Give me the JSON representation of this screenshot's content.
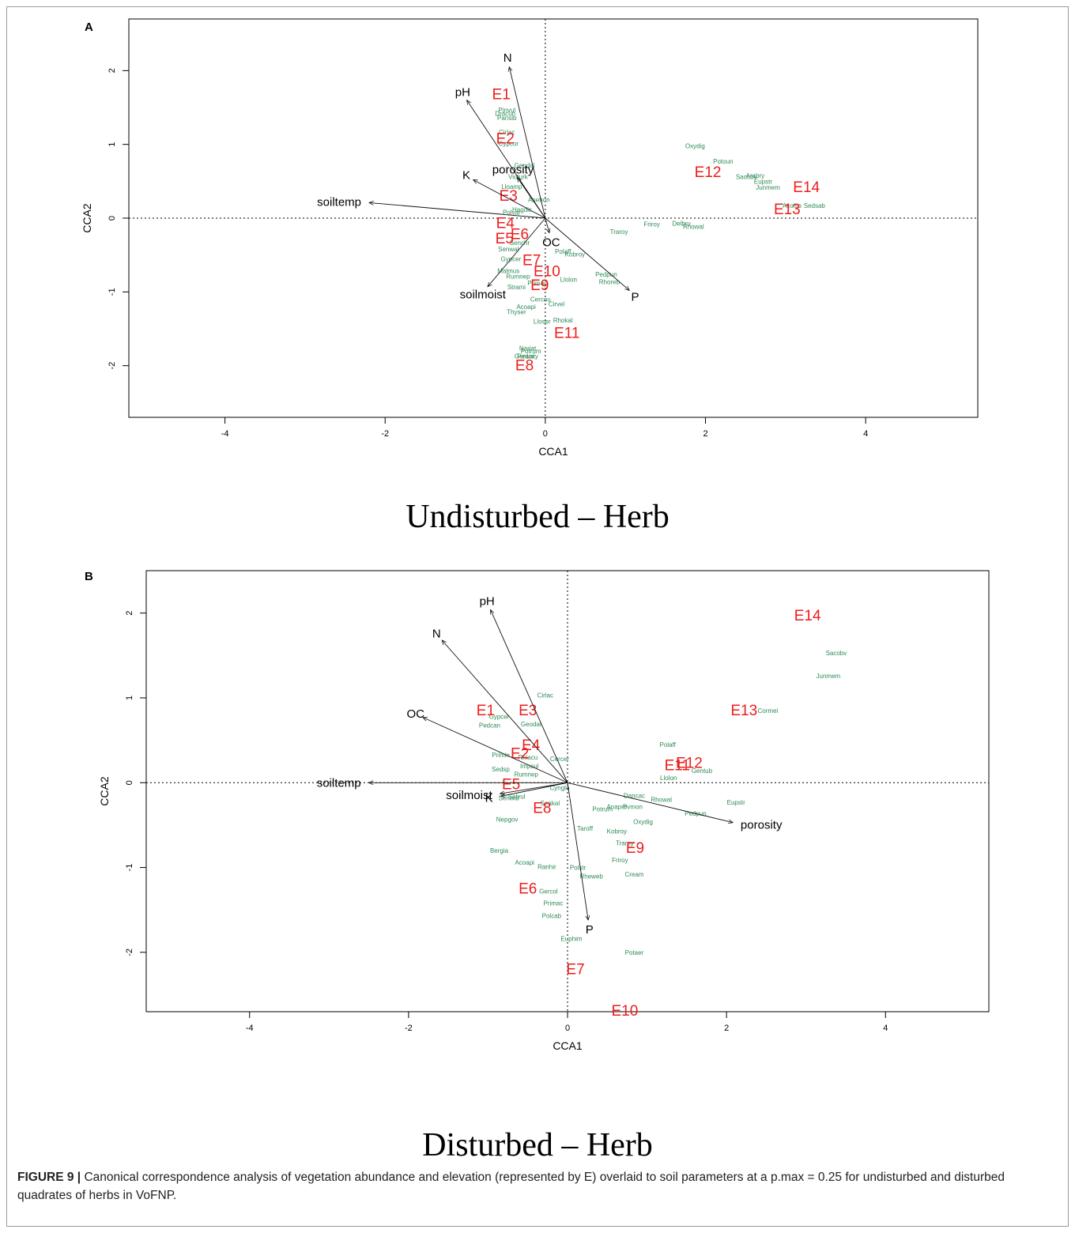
{
  "figure": {
    "label": "FIGURE 9 |",
    "caption": "Canonical correspondence analysis of vegetation abundance and elevation (represented by E) overlaid to soil parameters at a p.max = 0.25 for undisturbed and disturbed quadrates of herbs in VoFNP."
  },
  "colors": {
    "site": "#ee1c1c",
    "species": "#2e8b57",
    "arrow": "#111111"
  },
  "chart_data": [
    {
      "type": "scatter",
      "panel": "A",
      "title": "Undisturbed – Herb",
      "xlabel": "CCA1",
      "ylabel": "CCA2",
      "xlim": [
        -5.2,
        5.4
      ],
      "ylim": [
        -2.7,
        2.7
      ],
      "xticks": [
        -4,
        -2,
        0,
        2,
        4
      ],
      "yticks": [
        -2,
        -1,
        0,
        1,
        2
      ],
      "vectors": [
        {
          "name": "N",
          "x": -0.45,
          "y": 2.05
        },
        {
          "name": "pH",
          "x": -0.98,
          "y": 1.6
        },
        {
          "name": "porosity",
          "x": -0.35,
          "y": 0.55
        },
        {
          "name": "K",
          "x": -0.9,
          "y": 0.52
        },
        {
          "name": "soiltemp",
          "x": -2.2,
          "y": 0.21
        },
        {
          "name": "OC",
          "x": 0.05,
          "y": -0.2
        },
        {
          "name": "soilmoist",
          "x": -0.72,
          "y": -0.93
        },
        {
          "name": "P",
          "x": 1.05,
          "y": -0.98
        }
      ],
      "sites": [
        {
          "label": "E1",
          "x": -0.55,
          "y": 1.69
        },
        {
          "label": "E2",
          "x": -0.5,
          "y": 1.09
        },
        {
          "label": "E3",
          "x": -0.46,
          "y": 0.31
        },
        {
          "label": "E4",
          "x": -0.5,
          "y": -0.06
        },
        {
          "label": "E5",
          "x": -0.51,
          "y": -0.27
        },
        {
          "label": "E6",
          "x": -0.32,
          "y": -0.21
        },
        {
          "label": "E7",
          "x": -0.17,
          "y": -0.56
        },
        {
          "label": "E8",
          "x": -0.26,
          "y": -1.99
        },
        {
          "label": "E9",
          "x": -0.07,
          "y": -0.9
        },
        {
          "label": "E10",
          "x": 0.02,
          "y": -0.71
        },
        {
          "label": "E11",
          "x": 0.27,
          "y": -1.55
        },
        {
          "label": "E12",
          "x": 2.03,
          "y": 0.63
        },
        {
          "label": "E13",
          "x": 3.02,
          "y": 0.13
        },
        {
          "label": "E14",
          "x": 3.26,
          "y": 0.43
        }
      ],
      "species": [
        {
          "label": "Oxydig",
          "x": 1.87,
          "y": 0.98
        },
        {
          "label": "Potoun",
          "x": 2.22,
          "y": 0.77
        },
        {
          "label": "Sacobv",
          "x": 2.51,
          "y": 0.56
        },
        {
          "label": "Arabry",
          "x": 2.62,
          "y": 0.58
        },
        {
          "label": "Eupstr",
          "x": 2.72,
          "y": 0.5
        },
        {
          "label": "Junmem",
          "x": 2.78,
          "y": 0.42
        },
        {
          "label": "Acoiso",
          "x": 3.08,
          "y": 0.17
        },
        {
          "label": "Sedsab",
          "x": 3.36,
          "y": 0.17
        },
        {
          "label": "Friroy",
          "x": 1.33,
          "y": -0.08
        },
        {
          "label": "Delbru",
          "x": 1.7,
          "y": -0.07
        },
        {
          "label": "Rhowal",
          "x": 1.85,
          "y": -0.11
        },
        {
          "label": "Traroy",
          "x": 0.92,
          "y": -0.18
        },
        {
          "label": "Pedpun",
          "x": 0.76,
          "y": -0.76
        },
        {
          "label": "Rhoreb",
          "x": 0.8,
          "y": -0.86
        },
        {
          "label": "Polaff",
          "x": 0.22,
          "y": -0.45
        },
        {
          "label": "Kobroy",
          "x": 0.37,
          "y": -0.49
        },
        {
          "label": "Llolon",
          "x": 0.29,
          "y": -0.83
        },
        {
          "label": "Nariat",
          "x": -0.22,
          "y": -1.76
        },
        {
          "label": "Potrum",
          "x": -0.18,
          "y": -1.8
        },
        {
          "label": "Gerwal",
          "x": -0.26,
          "y": -1.87
        },
        {
          "label": "Pedoxy",
          "x": -0.22,
          "y": -1.87
        },
        {
          "label": "Lloser",
          "x": -0.04,
          "y": -1.4
        },
        {
          "label": "Thyser",
          "x": -0.36,
          "y": -1.27
        },
        {
          "label": "Acoapi",
          "x": -0.24,
          "y": -1.2
        },
        {
          "label": "Cirvel",
          "x": 0.14,
          "y": -1.16
        },
        {
          "label": "Rhokal",
          "x": 0.22,
          "y": -1.38
        },
        {
          "label": "Malmus",
          "x": -0.46,
          "y": -0.71
        },
        {
          "label": "Strami",
          "x": -0.36,
          "y": -0.93
        },
        {
          "label": "Senwal",
          "x": -0.46,
          "y": -0.42
        },
        {
          "label": "Gypcer",
          "x": -0.43,
          "y": -0.55
        },
        {
          "label": "Pinvul",
          "x": -0.48,
          "y": 1.47
        },
        {
          "label": "Dracun",
          "x": -0.5,
          "y": 1.42
        },
        {
          "label": "Pansib",
          "x": -0.48,
          "y": 1.36
        },
        {
          "label": "Cirlac",
          "x": -0.48,
          "y": 1.17
        },
        {
          "label": "Cypcor",
          "x": -0.46,
          "y": 1.01
        },
        {
          "label": "Lloamp",
          "x": -0.42,
          "y": 0.43
        },
        {
          "label": "Hagdic",
          "x": -0.29,
          "y": 0.12
        },
        {
          "label": "Polvar",
          "x": -0.42,
          "y": 0.08
        },
        {
          "label": "Senchr",
          "x": -0.32,
          "y": -0.33
        },
        {
          "label": "Anehon",
          "x": -0.08,
          "y": 0.25
        },
        {
          "label": "Cercou",
          "x": -0.06,
          "y": -1.1
        },
        {
          "label": "Geodal",
          "x": -0.26,
          "y": 0.72
        },
        {
          "label": "Vioturk",
          "x": -0.34,
          "y": 0.56
        },
        {
          "label": "Primac",
          "x": -0.1,
          "y": -0.88
        },
        {
          "label": "Rumnep",
          "x": -0.34,
          "y": -0.79
        }
      ]
    },
    {
      "type": "scatter",
      "panel": "B",
      "title": "Disturbed – Herb",
      "xlabel": "CCA1",
      "ylabel": "CCA2",
      "xlim": [
        -5.3,
        5.3
      ],
      "ylim": [
        -2.7,
        2.5
      ],
      "xticks": [
        -4,
        -2,
        0,
        2,
        4
      ],
      "yticks": [
        -2,
        -1,
        0,
        1,
        2
      ],
      "vectors": [
        {
          "name": "pH",
          "x": -0.97,
          "y": 2.04
        },
        {
          "name": "N",
          "x": -1.58,
          "y": 1.68
        },
        {
          "name": "OC",
          "x": -1.82,
          "y": 0.77
        },
        {
          "name": "soiltemp",
          "x": -2.5,
          "y": 0.0
        },
        {
          "name": "soilmoist",
          "x": -0.85,
          "y": -0.13
        },
        {
          "name": "K",
          "x": -0.84,
          "y": -0.16
        },
        {
          "name": "porosity",
          "x": 2.08,
          "y": -0.47
        },
        {
          "name": "P",
          "x": 0.26,
          "y": -1.62
        }
      ],
      "sites": [
        {
          "label": "E1",
          "x": -1.03,
          "y": 0.86
        },
        {
          "label": "E2",
          "x": -0.6,
          "y": 0.35
        },
        {
          "label": "E3",
          "x": -0.5,
          "y": 0.86
        },
        {
          "label": "E4",
          "x": -0.46,
          "y": 0.45
        },
        {
          "label": "E5",
          "x": -0.71,
          "y": -0.01
        },
        {
          "label": "E6",
          "x": -0.5,
          "y": -1.24
        },
        {
          "label": "E7",
          "x": 0.1,
          "y": -2.19
        },
        {
          "label": "E8",
          "x": -0.32,
          "y": -0.29
        },
        {
          "label": "E9",
          "x": 0.85,
          "y": -0.76
        },
        {
          "label": "E10",
          "x": 0.72,
          "y": -2.68
        },
        {
          "label": "E11",
          "x": 1.38,
          "y": 0.21
        },
        {
          "label": "E12",
          "x": 1.53,
          "y": 0.24
        },
        {
          "label": "E13",
          "x": 2.22,
          "y": 0.86
        },
        {
          "label": "E14",
          "x": 3.02,
          "y": 1.98
        }
      ],
      "species": [
        {
          "label": "Sacobv",
          "x": 3.38,
          "y": 1.53
        },
        {
          "label": "Junmem",
          "x": 3.28,
          "y": 1.26
        },
        {
          "label": "Cormei",
          "x": 2.52,
          "y": 0.85
        },
        {
          "label": "Polaff",
          "x": 1.26,
          "y": 0.45
        },
        {
          "label": "Gentub",
          "x": 1.69,
          "y": 0.14
        },
        {
          "label": "Llolon",
          "x": 1.27,
          "y": 0.06
        },
        {
          "label": "Eupstr",
          "x": 2.12,
          "y": -0.23
        },
        {
          "label": "Pedpun",
          "x": 1.61,
          "y": -0.36
        },
        {
          "label": "Dancac",
          "x": 0.84,
          "y": -0.15
        },
        {
          "label": "Rhowal",
          "x": 1.18,
          "y": -0.2
        },
        {
          "label": "Oxydig",
          "x": 0.95,
          "y": -0.46
        },
        {
          "label": "Anapro",
          "x": 0.62,
          "y": -0.28
        },
        {
          "label": "Pvmon",
          "x": 0.82,
          "y": -0.28
        },
        {
          "label": "Potrum",
          "x": 0.44,
          "y": -0.31
        },
        {
          "label": "Taroff",
          "x": 0.22,
          "y": -0.54
        },
        {
          "label": "Kobroy",
          "x": 0.62,
          "y": -0.57
        },
        {
          "label": "Traroy",
          "x": 0.72,
          "y": -0.71
        },
        {
          "label": "Friroy",
          "x": 0.66,
          "y": -0.91
        },
        {
          "label": "Cream",
          "x": 0.84,
          "y": -1.08
        },
        {
          "label": "Rheweb",
          "x": 0.3,
          "y": -1.1
        },
        {
          "label": "Polstr",
          "x": 0.13,
          "y": -1.0
        },
        {
          "label": "Gercol",
          "x": -0.24,
          "y": -1.28
        },
        {
          "label": "Primac",
          "x": -0.18,
          "y": -1.42
        },
        {
          "label": "Polcab",
          "x": -0.2,
          "y": -1.57
        },
        {
          "label": "Euphim",
          "x": 0.05,
          "y": -1.84
        },
        {
          "label": "Potaer",
          "x": 0.84,
          "y": -2.0
        },
        {
          "label": "Bergia",
          "x": -0.86,
          "y": -0.8
        },
        {
          "label": "Acoapi",
          "x": -0.54,
          "y": -0.94
        },
        {
          "label": "Ranhir",
          "x": -0.26,
          "y": -0.99
        },
        {
          "label": "Nepgov",
          "x": -0.76,
          "y": -0.43
        },
        {
          "label": "Selvul",
          "x": -0.64,
          "y": -0.16
        },
        {
          "label": "Senwal",
          "x": -0.74,
          "y": -0.18
        },
        {
          "label": "Gypcer",
          "x": -0.86,
          "y": 0.78
        },
        {
          "label": "Pedcan",
          "x": -0.98,
          "y": 0.68
        },
        {
          "label": "Cercer",
          "x": -0.1,
          "y": 0.28
        },
        {
          "label": "Rhiacu",
          "x": -0.5,
          "y": 0.3
        },
        {
          "label": "Impsul",
          "x": -0.48,
          "y": 0.2
        },
        {
          "label": "Sedsp",
          "x": -0.84,
          "y": 0.16
        },
        {
          "label": "Cirlac",
          "x": -0.28,
          "y": 1.03
        },
        {
          "label": "Geodal",
          "x": -0.46,
          "y": 0.69
        },
        {
          "label": "Cynglo",
          "x": -0.1,
          "y": -0.06
        },
        {
          "label": "Senkal",
          "x": -0.22,
          "y": -0.24
        },
        {
          "label": "Rumnep",
          "x": -0.52,
          "y": 0.1
        },
        {
          "label": "Primin",
          "x": -0.84,
          "y": 0.33
        }
      ]
    }
  ]
}
